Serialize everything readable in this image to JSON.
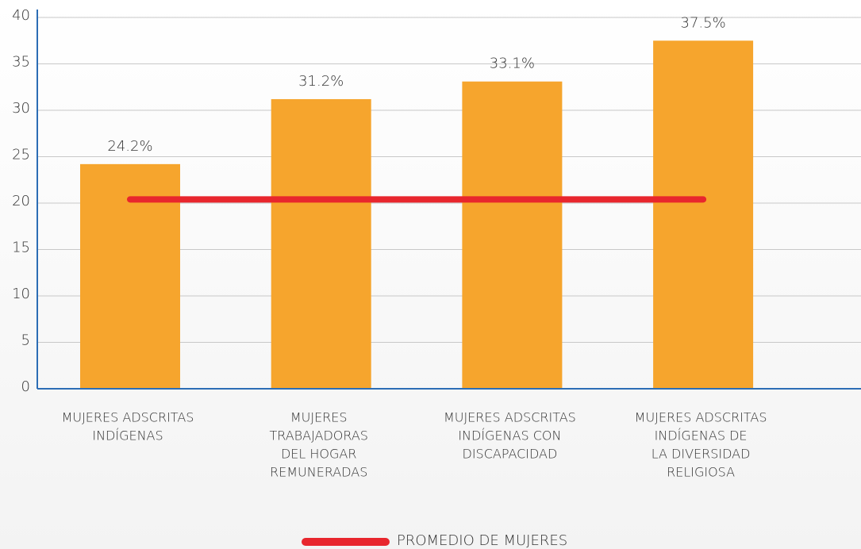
{
  "chart_data": {
    "type": "bar",
    "categories": [
      [
        "MUJERES ADSCRITAS",
        "INDÍGENAS"
      ],
      [
        "MUJERES",
        "TRABAJADORAS",
        "DEL HOGAR",
        "REMUNERADAS"
      ],
      [
        "MUJERES ADSCRITAS",
        "INDÍGENAS CON",
        "DISCAPACIDAD"
      ],
      [
        "MUJERES ADSCRITAS",
        "INDÍGENAS DE",
        "LA DIVERSIDAD",
        "RELIGIOSA"
      ]
    ],
    "values": [
      24.2,
      31.2,
      33.1,
      37.5
    ],
    "value_labels": [
      "24.2%",
      "31.2%",
      "33.1%",
      "37.5%"
    ],
    "color": "#f6a52d",
    "series": [
      {
        "name": "PROMEDIO DE MUJERES",
        "type": "line",
        "color": "#e8262d",
        "values": [
          20.4,
          20.4,
          20.4,
          20.4
        ]
      }
    ],
    "ylim": [
      0,
      40
    ],
    "yticks": [
      0,
      5,
      10,
      15,
      20,
      25,
      30,
      35,
      40
    ],
    "grid": true,
    "legend": "bottom"
  }
}
